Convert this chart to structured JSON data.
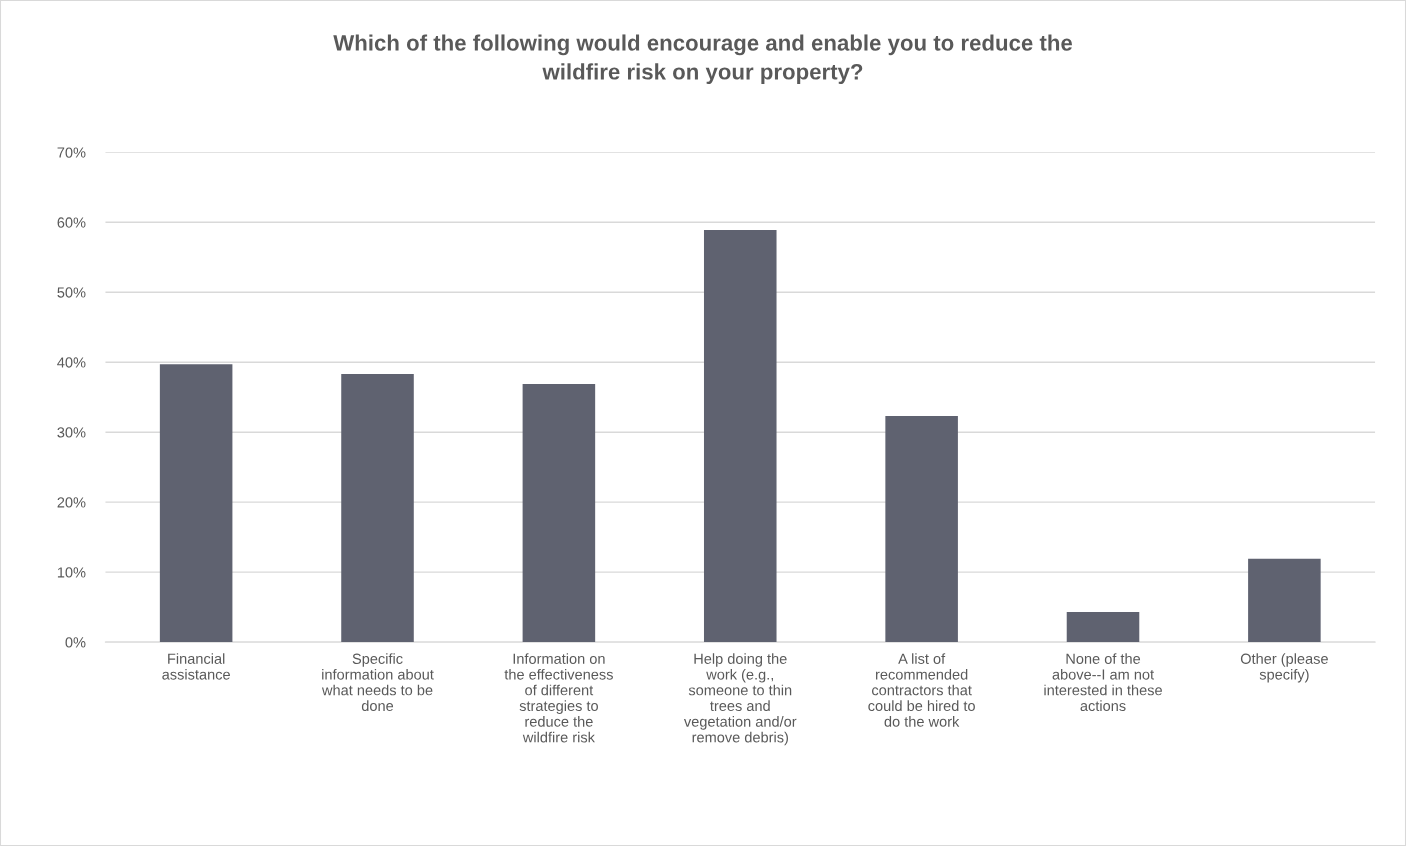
{
  "chart_data": {
    "type": "bar",
    "title": "Which of the following would encourage and enable you to reduce the\nwildfire risk on your property?",
    "categories": [
      "Financial\nassistance",
      "Specific\ninformation about\nwhat needs to be\ndone",
      "Information on\nthe effectiveness\nof different\nstrategies to\nreduce the\nwildfire risk",
      "Help doing the\nwork (e.g.,\nsomeone to thin\ntrees and\nvegetation and/or\nremove debris)",
      "A list of\nrecommended\ncontractors that\ncould be hired to\ndo the work",
      "None of the\nabove--I am not\ninterested in these\nactions",
      "Other (please\nspecify)"
    ],
    "values": [
      39.7,
      38.3,
      36.9,
      58.9,
      32.3,
      4.3,
      11.9
    ],
    "color": "#5f6270",
    "ylim": [
      0,
      70
    ],
    "yticks": [
      {
        "value": 0,
        "label": "0%"
      },
      {
        "value": 10,
        "label": "10%"
      },
      {
        "value": 20,
        "label": "20%"
      },
      {
        "value": 30,
        "label": "30%"
      },
      {
        "value": 40,
        "label": "40%"
      },
      {
        "value": 50,
        "label": "50%"
      },
      {
        "value": 60,
        "label": "60%"
      },
      {
        "value": 70,
        "label": "70%"
      }
    ],
    "grid": "y"
  }
}
